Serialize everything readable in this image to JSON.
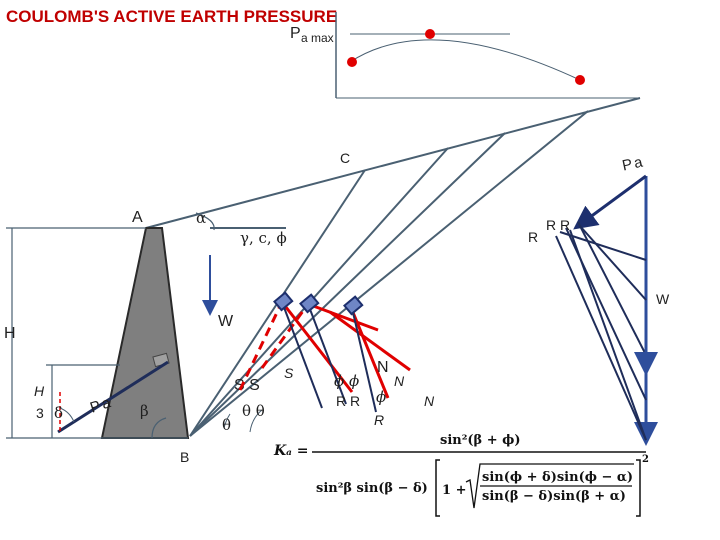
{
  "title": "COULOMB'S ACTIVE EARTH PRESSURE",
  "plot_label": "P",
  "plot_label_sub": "a max",
  "labels": {
    "A": "A",
    "B": "B",
    "C": "C",
    "H": "H",
    "W": "W",
    "W_right": "W",
    "alpha": "α",
    "soil_props": "γ, c, ϕ",
    "pa_wall": "Pa",
    "pa_right": "Pa",
    "h_small": "H",
    "three": "3",
    "delta": "δ",
    "beta": "β",
    "theta1": "θ",
    "theta2": "θ θ",
    "s_pair": "S S",
    "s_single": "S",
    "phi_pair": "ϕ ϕ",
    "phi_single": "ϕ",
    "n_big": "N",
    "n_ital": "N",
    "n_ital2": "N",
    "r_pair": "R R",
    "r_ital": "R",
    "r_right": "R",
    "rr_right": "R R"
  },
  "formula": {
    "lhs": "Kₐ =",
    "numerator": "sin²(β + ϕ)",
    "den_prefix": "sin²β sin(β − δ)",
    "one_plus": "1 +",
    "inner_num": "sin(ϕ + δ)sin(ϕ − α)",
    "inner_den": "sin(β − δ)sin(β + α)",
    "exponent": "2"
  },
  "colors": {
    "wall_fill": "#7f7f7f",
    "lines": "#4a6072",
    "red": "#e00000",
    "blue": "#2e4e9c",
    "dark_blue": "#1d2f6e",
    "navy": "#1f2d5a"
  }
}
